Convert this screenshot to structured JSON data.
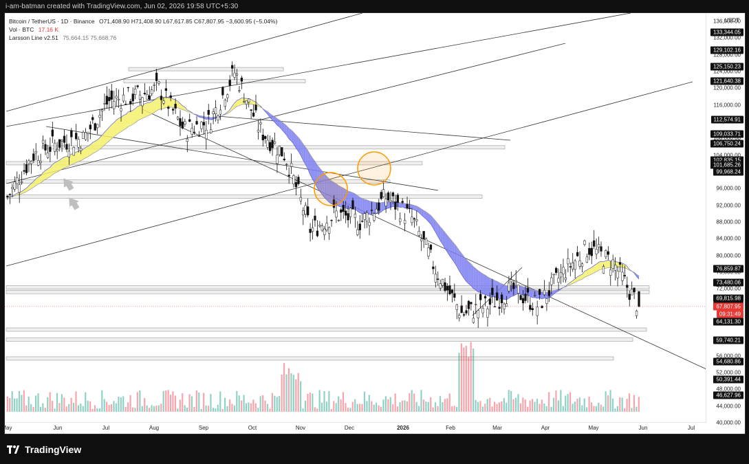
{
  "header": {
    "credit": "i-am-batman created with TradingView.com, Jun 02, 2026 19:58 UTC+5:30"
  },
  "legend": {
    "symbol": "Bitcoin / TetherUS · 1D · Binance",
    "ohlc": "O71,408.90  H71,408.90  L67,617.85  C67,807.95  −3,600.95 (−5.04%)",
    "vol_label": "Vol · BTC",
    "vol_value": "17.16 K",
    "indicator_label": "Larsson Line v2.51",
    "indicator_values": "75,664.15  75,668.76"
  },
  "price_scale": {
    "currency": "USDT",
    "ticks": [
      "136,000.00",
      "132,000.00",
      "128,000.00",
      "124,000.00",
      "120,000.00",
      "116,000.00",
      "112,000.00",
      "108,000.00",
      "104,000.00",
      "100,000.00",
      "96,000.00",
      "92,000.00",
      "88,000.00",
      "84,000.00",
      "80,000.00",
      "76,000.00",
      "72,000.00",
      "68,000.00",
      "64,000.00",
      "60,000.00",
      "56,000.00",
      "52,000.00",
      "48,000.00",
      "44,000.00",
      "40,000.00"
    ],
    "tags": [
      "133,344.05",
      "129,102.16",
      "125,150.23",
      "121,640.38",
      "112,574.91",
      "109,033.71",
      "106,750.24",
      "102,835.31",
      "102,835.15",
      "101,692.89",
      "101,685.26",
      "99,968.24",
      "76,859.87",
      "73,480.06",
      "69,815.98",
      "67,987.23",
      "67,807.95",
      "64,131.30",
      "59,740.21",
      "54,680.86",
      "50,438.97",
      "50,391.44",
      "46,627.96"
    ],
    "timer": "09:31:49"
  },
  "time_axis": {
    "labels": [
      "May",
      "Jun",
      "Jul",
      "Aug",
      "Sep",
      "Oct",
      "Nov",
      "Dec",
      "2026",
      "Feb",
      "Mar",
      "Apr",
      "May",
      "Jun",
      "Jul"
    ]
  },
  "footer": {
    "brand": "TradingView"
  },
  "colors": {
    "up": "#089981",
    "down": "#f23645",
    "larsson_fill_bull": "#f5f06a",
    "larsson_fill_bear": "#7b7ff0",
    "accent": "#ff9800"
  },
  "chart_data": {
    "type": "candlestick",
    "symbol": "BTCUSDT",
    "timeframe": "1D",
    "x_range": [
      "May",
      "Jul"
    ],
    "ylim": [
      40000,
      138000
    ],
    "close_path": [
      {
        "t": "May",
        "v": 94000
      },
      {
        "t": "Jun",
        "v": 104000
      },
      {
        "t": "Jun",
        "v": 107000
      },
      {
        "t": "Jul",
        "v": 108000
      },
      {
        "t": "Jul",
        "v": 117000
      },
      {
        "t": "Aug",
        "v": 118000
      },
      {
        "t": "Aug",
        "v": 120000
      },
      {
        "t": "Sep",
        "v": 110000
      },
      {
        "t": "Sep",
        "v": 112000
      },
      {
        "t": "Oct",
        "v": 124000
      },
      {
        "t": "Oct",
        "v": 110000
      },
      {
        "t": "Nov",
        "v": 104000
      },
      {
        "t": "Nov",
        "v": 86000
      },
      {
        "t": "Dec",
        "v": 90000
      },
      {
        "t": "Dec",
        "v": 88000
      },
      {
        "t": "2026",
        "v": 94000
      },
      {
        "t": "Jan",
        "v": 89000
      },
      {
        "t": "Feb",
        "v": 76000
      },
      {
        "t": "Feb",
        "v": 66000
      },
      {
        "t": "Mar",
        "v": 68000
      },
      {
        "t": "Mar",
        "v": 72000
      },
      {
        "t": "Apr",
        "v": 68000
      },
      {
        "t": "Apr",
        "v": 76000
      },
      {
        "t": "May",
        "v": 82000
      },
      {
        "t": "May",
        "v": 78000
      },
      {
        "t": "Jun",
        "v": 67808
      }
    ],
    "last": {
      "open": 71408.9,
      "high": 71408.9,
      "low": 67617.85,
      "close": 67807.95,
      "change": -3600.95,
      "change_pct": -5.04
    },
    "horizontal_levels": [
      112574.91,
      109033.71,
      106750.24,
      102835.31,
      99968.24,
      76859.87,
      73480.06,
      69815.98,
      64131.3,
      59740.21
    ],
    "grid": false
  }
}
